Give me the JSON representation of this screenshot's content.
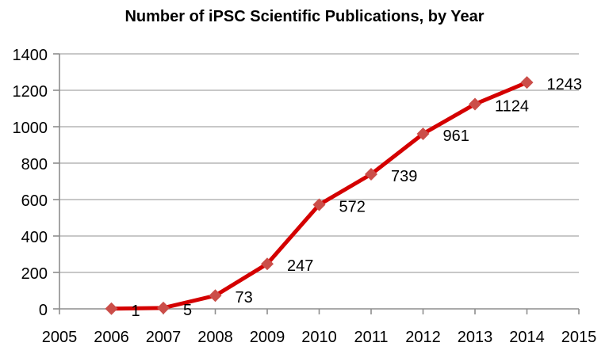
{
  "chart_data": {
    "type": "line",
    "title": "Number of iPSC Scientific Publications, by Year",
    "x": [
      2006,
      2007,
      2008,
      2009,
      2010,
      2011,
      2012,
      2013,
      2014
    ],
    "values": [
      1,
      5,
      73,
      247,
      572,
      739,
      961,
      1124,
      1243
    ],
    "data_labels": [
      "1",
      "5",
      "73",
      "247",
      "572",
      "739",
      "961",
      "1124",
      "1243"
    ],
    "x_axis": {
      "min": 2005,
      "max": 2015,
      "tick_values": [
        2005,
        2006,
        2007,
        2008,
        2009,
        2010,
        2011,
        2012,
        2013,
        2014,
        2015
      ],
      "tick_labels": [
        "2005",
        "2006",
        "2007",
        "2008",
        "2009",
        "2010",
        "2011",
        "2012",
        "2013",
        "2014",
        "2015"
      ]
    },
    "y_axis": {
      "min": 0,
      "max": 1400,
      "tick_interval": 200,
      "tick_values": [
        0,
        200,
        400,
        600,
        800,
        1000,
        1200,
        1400
      ],
      "tick_labels": [
        "0",
        "200",
        "400",
        "600",
        "800",
        "1000",
        "1200",
        "1400"
      ]
    },
    "grid": true,
    "legend_position": "none",
    "marker_shape": "diamond",
    "xlabel": "",
    "ylabel": "",
    "colors": {
      "line": "#D40000",
      "marker_fill": "#CB4E49",
      "gridline": "#A6A6A6",
      "axis": "#8E8E8E",
      "text": "#000000",
      "background": "#FFFFFF"
    }
  }
}
